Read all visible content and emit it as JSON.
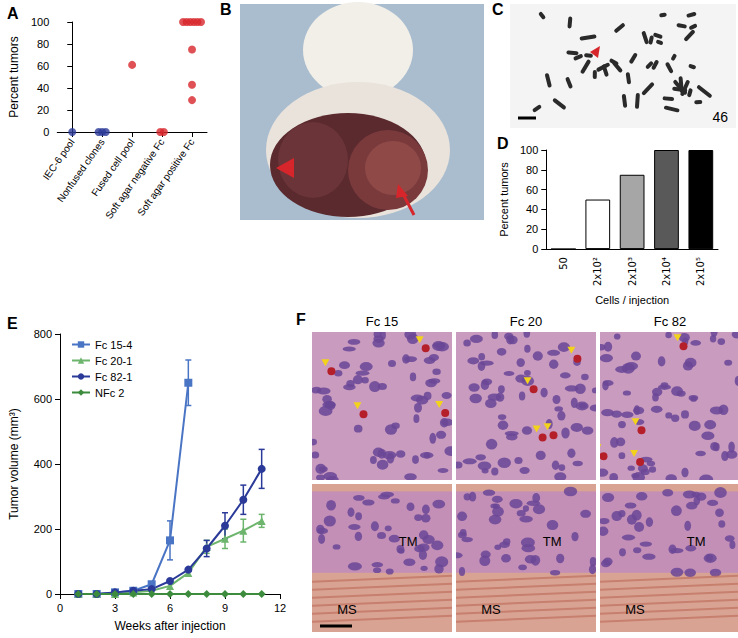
{
  "chart_data": [
    {
      "panel": "A",
      "type": "scatter",
      "ylabel": "Percent tumors",
      "categories": [
        "IEC-6 pool",
        "Nonfused clones",
        "Fused cell pool",
        "Soft agar negative Fc",
        "Soft agar positive Fc"
      ],
      "values": [
        [
          0
        ],
        [
          0,
          0,
          0
        ],
        [
          61
        ],
        [
          0,
          0
        ],
        [
          100,
          100,
          100,
          100,
          100,
          100,
          75,
          43,
          29
        ]
      ],
      "colors": [
        "#2b3a98",
        "#2b3a98",
        "#d7262b",
        "#d7262b",
        "#d7262b"
      ],
      "ylim": [
        0,
        100
      ],
      "yticks": [
        0,
        20,
        40,
        60,
        80,
        100
      ],
      "grid": false,
      "marker": "circle"
    },
    {
      "panel": "D",
      "type": "bar",
      "ylabel": "Percent tumors",
      "xlabel": "Cells / injection",
      "categories": [
        "50",
        "2x10²",
        "2x10³",
        "2x10⁴",
        "2x10⁵"
      ],
      "values": [
        0,
        50,
        75,
        100,
        100
      ],
      "colors": [
        "#ffffff",
        "#ffffff",
        "#a6a6a6",
        "#595959",
        "#000000"
      ],
      "ylim": [
        0,
        100
      ],
      "yticks": [
        0,
        20,
        40,
        60,
        80,
        100
      ],
      "grid": false
    },
    {
      "panel": "E",
      "type": "line",
      "xlabel": "Weeks after injection",
      "ylabel": "Tumor volume (mm³)",
      "x": [
        1,
        2,
        3,
        4,
        5,
        6,
        7,
        8,
        9,
        10,
        11
      ],
      "series": [
        {
          "name": "Fc 15-4",
          "color": "#4a74c4",
          "marker": "square",
          "values": [
            0,
            0,
            5,
            10,
            30,
            165,
            650,
            null,
            null,
            null,
            null
          ],
          "errors": [
            null,
            null,
            null,
            null,
            null,
            60,
            70,
            null,
            null,
            null,
            null
          ]
        },
        {
          "name": "Fc 20-1",
          "color": "#6db56d",
          "marker": "triangle",
          "values": [
            0,
            0,
            0,
            5,
            10,
            25,
            65,
            145,
            170,
            195,
            225
          ],
          "errors": [
            null,
            null,
            null,
            null,
            null,
            null,
            null,
            20,
            30,
            35,
            20
          ]
        },
        {
          "name": "Fc 82-1",
          "color": "#2b3a98",
          "marker": "circle",
          "values": [
            0,
            0,
            5,
            10,
            15,
            40,
            75,
            140,
            210,
            290,
            385
          ],
          "errors": [
            null,
            null,
            null,
            null,
            null,
            null,
            null,
            25,
            40,
            45,
            60
          ]
        },
        {
          "name": "NFc 2",
          "color": "#3d8c3d",
          "marker": "diamond",
          "values": [
            0,
            0,
            0,
            0,
            0,
            0,
            0,
            0,
            0,
            0,
            0
          ],
          "errors": [
            null,
            null,
            null,
            null,
            null,
            null,
            null,
            null,
            null,
            null,
            null
          ]
        }
      ],
      "xlim": [
        0,
        12
      ],
      "xticks": [
        0,
        3,
        6,
        9,
        12
      ],
      "ylim": [
        0,
        800
      ],
      "yticks": [
        0,
        200,
        400,
        600,
        800
      ],
      "grid": false,
      "legend": "top-left"
    }
  ],
  "images": [
    {
      "panel": "B"
    },
    {
      "panel": "C",
      "text": "46"
    },
    {
      "panel": "F",
      "columns": [
        "Fc 15",
        "Fc 20",
        "Fc 82"
      ],
      "labels": [
        "TM",
        "MS"
      ]
    }
  ]
}
